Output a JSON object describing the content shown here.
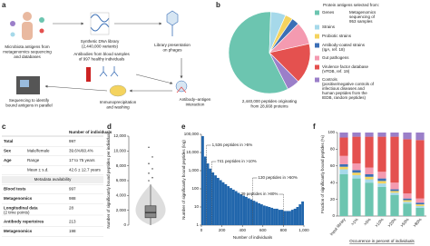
{
  "diagram": {
    "label": "a",
    "steps": [
      {
        "lines": [
          "Microbiota antigens from",
          "metagenomics sequencing",
          "and databases"
        ]
      },
      {
        "lines": [
          "Synthetic DNA library",
          "(2,440,000 variants)"
        ]
      },
      {
        "lines": [
          "Library presentation",
          "on phages"
        ]
      },
      {
        "lines": [
          "Antibodies from blood samples",
          "of 997 healthy individuals"
        ]
      },
      {
        "lines": [
          "Antibody–antigen",
          "interaction"
        ]
      },
      {
        "lines": [
          "Immunoprecipitation",
          "and washing"
        ]
      },
      {
        "lines": [
          "Sequencing to identify",
          "bound antigens in parallel"
        ]
      }
    ]
  },
  "table": {
    "label": "c",
    "header": "Number of individuals",
    "rows": [
      {
        "head": "Total",
        "value": "997"
      },
      {
        "head": "Sex",
        "sub": "Male/female",
        "value": "39.6%/60.4%"
      },
      {
        "head": "Age",
        "sub": "Range",
        "value": "17 to 75 years"
      },
      {
        "sub": "Mean ± s.d.",
        "value": "42.6 ± 12.7 years"
      },
      {
        "section": "Metadata availability"
      },
      {
        "head": "Blood tests",
        "value": "997"
      },
      {
        "head": "Metagenomics",
        "value": "988"
      },
      {
        "head": "Longitudinal data",
        "sub": "(2 time points)",
        "value": "28"
      },
      {
        "head": "Antibody repertoires",
        "value": "213"
      },
      {
        "head": "Metagenomics",
        "value": "198"
      }
    ]
  },
  "chart_data": [
    {
      "type": "pie",
      "label": "b",
      "title": "Protein antigens selected from:",
      "categories": [
        "Genes",
        "Strains",
        "Probiotic strains",
        "Antibody-coated strains",
        "Gut pathogens",
        "Virulence factor database",
        "Controls"
      ],
      "details": [
        [
          "Metagenomics",
          "sequencing of",
          "953 samples"
        ],
        null,
        null,
        [
          "(IgA, ref. 18)"
        ],
        null,
        [
          "(VFDB, ref. 19)"
        ],
        [
          "(positive/negative controls of",
          "infectious diseases and",
          "human peptides from the",
          "IEDB, random peptides)"
        ]
      ],
      "values": [
        58,
        6,
        3,
        3,
        9,
        16,
        5
      ],
      "colors": [
        "#6cc5b0",
        "#a6d9ea",
        "#f4d35e",
        "#3b6fb6",
        "#f49ab0",
        "#e4514f",
        "#9b7fc9"
      ],
      "caption": [
        "2,440,000 peptides originating",
        "from 28,668 proteins"
      ]
    },
    {
      "type": "box",
      "label": "d",
      "ylabel": "Number of significantly bound peptides per individual",
      "ylim": [
        0,
        12000
      ],
      "yticks": [
        0,
        {
          "value": 2000,
          "label": "2,000"
        },
        {
          "value": 4000,
          "label": "4,000"
        },
        {
          "value": 6000,
          "label": "6,000"
        },
        {
          "value": 8000,
          "label": "8,000"
        },
        {
          "value": 10000,
          "label": "10,000"
        },
        {
          "value": 12000,
          "label": "12,000"
        }
      ],
      "box": {
        "low": 0,
        "q1": 1000,
        "median": 1700,
        "q3": 2600,
        "high": 5500
      },
      "outliers": [
        6000,
        6400,
        7000,
        7600,
        8300,
        9200,
        10500
      ],
      "color": "#888888"
    },
    {
      "type": "histogram",
      "label": "e",
      "xlabel": "Number of individuals",
      "ylabel": "Number of significantly bound peptides (log)",
      "log_y": true,
      "xlim": [
        0,
        1000
      ],
      "xticks": [
        0,
        200,
        400,
        600,
        800,
        {
          "value": 1000,
          "label": "1,000"
        }
      ],
      "ylim": [
        1,
        100000
      ],
      "yticks": [
        1,
        10,
        100,
        {
          "value": 1000,
          "label": "1,000"
        },
        {
          "value": 10000,
          "label": "10,000"
        },
        {
          "value": 100000,
          "label": "100,000"
        }
      ],
      "bins": [
        0,
        25,
        50,
        75,
        100,
        125,
        150,
        175,
        200,
        225,
        250,
        275,
        300,
        325,
        350,
        375,
        400,
        425,
        450,
        475,
        500,
        525,
        550,
        575,
        600,
        625,
        650,
        675,
        700,
        725,
        750,
        775,
        800,
        825,
        850,
        875,
        900,
        925,
        950,
        975,
        1000
      ],
      "counts": [
        80000,
        6000,
        2500,
        1300,
        800,
        550,
        400,
        300,
        230,
        180,
        140,
        110,
        90,
        75,
        60,
        50,
        42,
        36,
        30,
        26,
        22,
        19,
        16,
        14,
        12,
        11,
        10,
        9,
        8,
        8,
        7,
        7,
        6,
        6,
        6,
        7,
        8,
        10,
        14,
        20
      ],
      "color": "#2166ac",
      "annotations": [
        {
          "text": "1,536 peptides in >5%",
          "x": 50
        },
        {
          "text": "741 peptides in >10%",
          "x": 100
        },
        {
          "text": "130 peptides in >50%",
          "x": 500
        },
        {
          "text": "39 peptides in >80%",
          "x": 800
        }
      ]
    },
    {
      "type": "stacked_bar",
      "label": "f",
      "ylabel": "Fraction of significantly bound peptides (%)",
      "xlabel": "Occurrence in percent of individuals",
      "categories": [
        "Input library",
        ">1%",
        ">5%",
        ">10%",
        ">20%",
        ">50%",
        ">80%"
      ],
      "ylim": [
        0,
        100
      ],
      "yticks": [
        0,
        20,
        40,
        60,
        80,
        100
      ],
      "series": [
        {
          "color": "#6cc5b0",
          "values": [
            50,
            45,
            40,
            35,
            25,
            15,
            10
          ]
        },
        {
          "color": "#a6d9ea",
          "values": [
            6,
            4,
            4,
            4,
            3,
            2,
            2
          ]
        },
        {
          "color": "#f4d35e",
          "values": [
            3,
            3,
            3,
            3,
            2,
            2,
            2
          ]
        },
        {
          "color": "#3b6fb6",
          "values": [
            3,
            3,
            3,
            3,
            2,
            2,
            2
          ]
        },
        {
          "color": "#f49ab0",
          "values": [
            10,
            8,
            8,
            8,
            8,
            6,
            5
          ]
        },
        {
          "color": "#e4514f",
          "values": [
            22,
            32,
            37,
            42,
            55,
            65,
            70
          ]
        },
        {
          "color": "#9b7fc9",
          "values": [
            6,
            5,
            5,
            5,
            5,
            8,
            9
          ]
        }
      ]
    }
  ]
}
